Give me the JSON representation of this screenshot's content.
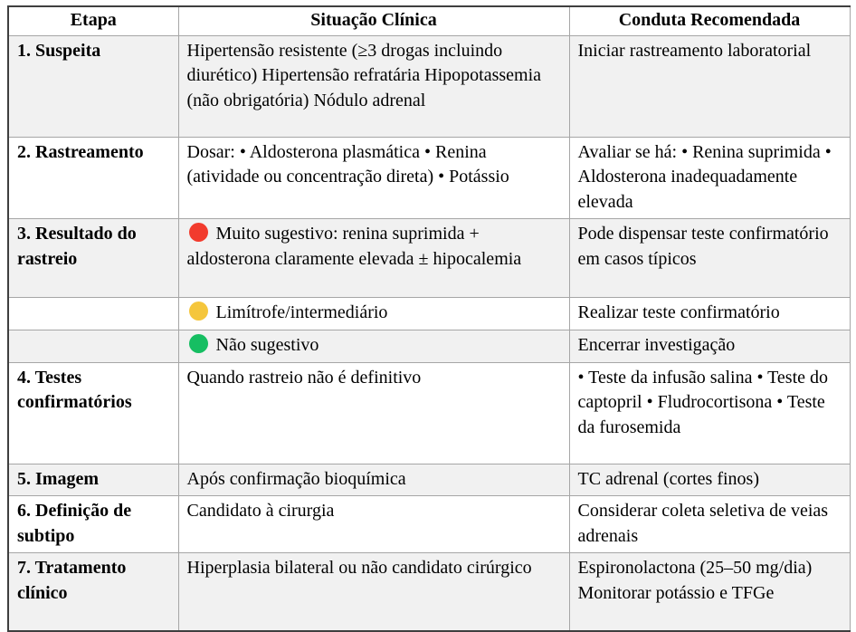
{
  "table": {
    "header": {
      "etapa": "Etapa",
      "situacao": "Situação Clínica",
      "conduta": "Conduta Recomendada"
    },
    "rows": [
      {
        "etapa": "1. Suspeita",
        "situacao": "Hipertensão resistente (≥3 drogas incluindo diurético) Hipertensão refratária Hipopotassemia (não obrigatória) Nódulo adrenal",
        "conduta": "Iniciar rastreamento laboratorial"
      },
      {
        "etapa": "2. Rastreamento",
        "situacao": "Dosar: • Aldosterona plasmática • Renina (atividade ou concentração direta) • Potássio",
        "conduta": "Avaliar se há: • Renina suprimida • Aldosterona inadequadamente elevada"
      },
      {
        "etapa": "3. Resultado do rastreio",
        "dot": "red",
        "situacao": "Muito sugestivo: renina suprimida + aldosterona claramente elevada ± hipocalemia",
        "conduta": "Pode dispensar teste confirmatório em casos típicos"
      },
      {
        "etapa": "",
        "dot": "yellow",
        "situacao": "Limítrofe/intermediário",
        "conduta": "Realizar teste confirmatório"
      },
      {
        "etapa": "",
        "dot": "green",
        "situacao": "Não sugestivo",
        "conduta": "Encerrar investigação"
      },
      {
        "etapa": "4. Testes confirmatórios",
        "situacao": "Quando rastreio não é definitivo",
        "conduta": "• Teste da infusão salina • Teste do captopril • Fludrocortisona • Teste da furosemida"
      },
      {
        "etapa": "5. Imagem",
        "situacao": "Após confirmação bioquímica",
        "conduta": "TC adrenal (cortes finos)"
      },
      {
        "etapa": "6. Definição de subtipo",
        "situacao": "Candidato à cirurgia",
        "conduta": "Considerar coleta seletiva de veias adrenais"
      },
      {
        "etapa": "7. Tratamento clínico",
        "situacao": "Hiperplasia bilateral ou não candidato cirúrgico",
        "conduta": "Espironolactona (25–50 mg/dia) Monitorar potássio e TFGe"
      }
    ]
  },
  "colors": {
    "red": "#f23b2d",
    "yellow": "#f5c63c",
    "green": "#16be62",
    "row_shade": "#f1f1f1",
    "border_outer": "#3f3f3f",
    "border_inner": "#a6a6a6"
  }
}
